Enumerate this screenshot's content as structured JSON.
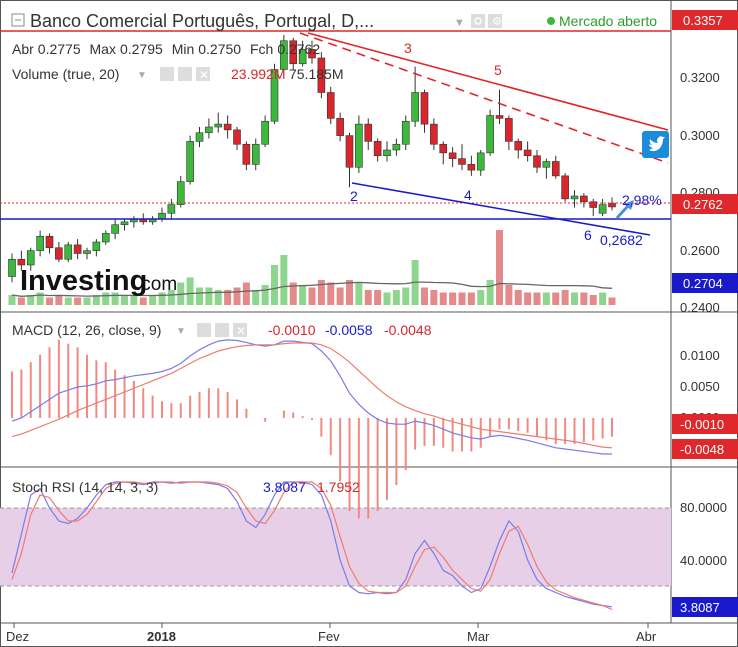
{
  "header": {
    "title": "Banco Comercial Português, Portugal, D,...",
    "market_status": "Mercado aberto",
    "ohlc": {
      "abr_label": "Abr",
      "abr": "0.2775",
      "max_label": "Max",
      "max": "0.2795",
      "min_label": "Min",
      "min": "0.2750",
      "fch_label": "Fch",
      "fch": "0.2762"
    },
    "volume_label": "Volume (true, 20)",
    "volume_v1": "23.992M",
    "volume_v2": "75.185M"
  },
  "logo": {
    "word": "Investing",
    "suffix": ".com"
  },
  "colors": {
    "up": "#3cb83c",
    "down": "#d9262d",
    "blue": "#1a1acc",
    "red": "#e0272b",
    "macd": "#7b7bea",
    "signal": "#f07a6e",
    "rsi_band": "#e8cfe8"
  },
  "icons": [
    "gear-icon",
    "settings-icon",
    "close-icon",
    "eye-icon",
    "twitter-icon",
    "chevron-down-icon"
  ],
  "main_axis": {
    "ticks": [
      "0.3200",
      "0.3000",
      "0.2800",
      "0.2600",
      "0.2400"
    ],
    "badge_top": "0.3357",
    "badge_price": "0.2762",
    "badge_volume": "0.2704"
  },
  "annotations": {
    "p2": "2",
    "p3": "3",
    "p4": "4",
    "p5": "5",
    "p6": "6",
    "target": "0,2682",
    "pct": "2,98%"
  },
  "macd": {
    "label": "MACD (12, 26, close, 9)",
    "v1": "-0.0010",
    "v2": "-0.0058",
    "v3": "-0.0048",
    "ticks": [
      "0.0100",
      "0.0050",
      "0.0000"
    ],
    "badge1": "-0.0010",
    "badge2": "-0.0048"
  },
  "stoch": {
    "label": "Stoch RSI (14, 14, 3, 3)",
    "v1": "3.8087",
    "v2": "1.7952",
    "ticks": [
      "80.0000",
      "40.0000"
    ],
    "badge": "3.8087"
  },
  "x_axis": {
    "labels": [
      "Dez",
      "2018",
      "Fev",
      "Mar",
      "Abr"
    ]
  },
  "chart_data": {
    "type": "candlestick",
    "title": "Banco Comercial Português, Portugal, D",
    "ylim": [
      0.235,
      0.337
    ],
    "candles": [
      [
        0.252,
        0.26,
        0.25,
        0.258
      ],
      [
        0.258,
        0.261,
        0.254,
        0.256
      ],
      [
        0.256,
        0.262,
        0.254,
        0.261
      ],
      [
        0.261,
        0.268,
        0.259,
        0.266
      ],
      [
        0.266,
        0.267,
        0.26,
        0.262
      ],
      [
        0.262,
        0.264,
        0.257,
        0.258
      ],
      [
        0.258,
        0.264,
        0.257,
        0.263
      ],
      [
        0.263,
        0.265,
        0.258,
        0.26
      ],
      [
        0.26,
        0.262,
        0.258,
        0.261
      ],
      [
        0.261,
        0.265,
        0.259,
        0.264
      ],
      [
        0.264,
        0.268,
        0.263,
        0.267
      ],
      [
        0.267,
        0.272,
        0.265,
        0.27
      ],
      [
        0.27,
        0.272,
        0.268,
        0.271
      ],
      [
        0.271,
        0.273,
        0.269,
        0.272
      ],
      [
        0.272,
        0.274,
        0.27,
        0.271
      ],
      [
        0.271,
        0.273,
        0.27,
        0.272
      ],
      [
        0.272,
        0.276,
        0.271,
        0.274
      ],
      [
        0.274,
        0.279,
        0.272,
        0.277
      ],
      [
        0.277,
        0.287,
        0.276,
        0.285
      ],
      [
        0.285,
        0.301,
        0.284,
        0.299
      ],
      [
        0.299,
        0.304,
        0.297,
        0.302
      ],
      [
        0.302,
        0.307,
        0.3,
        0.304
      ],
      [
        0.304,
        0.309,
        0.302,
        0.305
      ],
      [
        0.305,
        0.308,
        0.3,
        0.303
      ],
      [
        0.303,
        0.304,
        0.296,
        0.298
      ],
      [
        0.298,
        0.299,
        0.289,
        0.291
      ],
      [
        0.291,
        0.3,
        0.289,
        0.298
      ],
      [
        0.298,
        0.308,
        0.297,
        0.306
      ],
      [
        0.306,
        0.326,
        0.305,
        0.324
      ],
      [
        0.324,
        0.336,
        0.322,
        0.334
      ],
      [
        0.334,
        0.335,
        0.324,
        0.326
      ],
      [
        0.326,
        0.334,
        0.325,
        0.331
      ],
      [
        0.331,
        0.334,
        0.326,
        0.328
      ],
      [
        0.328,
        0.33,
        0.314,
        0.316
      ],
      [
        0.316,
        0.318,
        0.305,
        0.307
      ],
      [
        0.307,
        0.309,
        0.299,
        0.301
      ],
      [
        0.301,
        0.302,
        0.283,
        0.29
      ],
      [
        0.29,
        0.308,
        0.288,
        0.305
      ],
      [
        0.305,
        0.307,
        0.296,
        0.299
      ],
      [
        0.299,
        0.3,
        0.292,
        0.294
      ],
      [
        0.294,
        0.299,
        0.292,
        0.296
      ],
      [
        0.296,
        0.3,
        0.294,
        0.298
      ],
      [
        0.298,
        0.308,
        0.296,
        0.306
      ],
      [
        0.306,
        0.325,
        0.304,
        0.316
      ],
      [
        0.316,
        0.317,
        0.302,
        0.305
      ],
      [
        0.305,
        0.307,
        0.296,
        0.298
      ],
      [
        0.298,
        0.299,
        0.291,
        0.295
      ],
      [
        0.295,
        0.297,
        0.29,
        0.293
      ],
      [
        0.293,
        0.298,
        0.289,
        0.291
      ],
      [
        0.291,
        0.294,
        0.287,
        0.289
      ],
      [
        0.289,
        0.296,
        0.287,
        0.295
      ],
      [
        0.295,
        0.31,
        0.294,
        0.308
      ],
      [
        0.308,
        0.317,
        0.305,
        0.307
      ],
      [
        0.307,
        0.308,
        0.296,
        0.299
      ],
      [
        0.299,
        0.3,
        0.293,
        0.296
      ],
      [
        0.296,
        0.299,
        0.292,
        0.294
      ],
      [
        0.294,
        0.296,
        0.288,
        0.29
      ],
      [
        0.29,
        0.293,
        0.286,
        0.292
      ],
      [
        0.292,
        0.294,
        0.286,
        0.287
      ],
      [
        0.287,
        0.288,
        0.278,
        0.279
      ],
      [
        0.279,
        0.282,
        0.276,
        0.28
      ],
      [
        0.28,
        0.281,
        0.276,
        0.278
      ],
      [
        0.278,
        0.279,
        0.273,
        0.276
      ],
      [
        0.274,
        0.279,
        0.273,
        0.277
      ],
      [
        0.2775,
        0.2795,
        0.275,
        0.2762
      ]
    ],
    "volume": [
      4,
      3,
      4,
      5,
      3,
      4,
      3,
      3,
      3,
      4,
      5,
      5,
      4,
      4,
      3,
      4,
      5,
      6,
      9,
      11,
      7,
      7,
      6,
      6,
      7,
      9,
      6,
      8,
      16,
      20,
      9,
      8,
      7,
      10,
      9,
      7,
      10,
      9,
      6,
      6,
      5,
      6,
      7,
      18,
      7,
      6,
      5,
      5,
      5,
      5,
      6,
      10,
      30,
      8,
      6,
      5,
      5,
      5,
      5,
      6,
      5,
      5,
      4,
      5,
      3
    ],
    "macd": [
      -0.0005,
      0.0,
      0.001,
      0.002,
      0.003,
      0.004,
      0.0045,
      0.005,
      0.0052,
      0.0055,
      0.006,
      0.0062,
      0.0065,
      0.0068,
      0.007,
      0.0072,
      0.0075,
      0.008,
      0.0088,
      0.01,
      0.011,
      0.0118,
      0.0124,
      0.0126,
      0.0125,
      0.0122,
      0.0118,
      0.0116,
      0.0118,
      0.0124,
      0.0124,
      0.0122,
      0.012,
      0.0108,
      0.0092,
      0.0068,
      0.004,
      0.0022,
      0.0008,
      -0.0002,
      -0.0008,
      -0.001,
      -0.001,
      -0.0005,
      -0.0008,
      -0.0012,
      -0.0018,
      -0.0024,
      -0.0028,
      -0.0032,
      -0.0034,
      -0.003,
      -0.0028,
      -0.003,
      -0.0033,
      -0.0036,
      -0.004,
      -0.0044,
      -0.0048,
      -0.005,
      -0.0052,
      -0.0054,
      -0.0056,
      -0.0058,
      -0.0058
    ],
    "signal": [
      -0.003,
      -0.0026,
      -0.002,
      -0.0014,
      -0.0008,
      -0.0002,
      0.0005,
      0.0012,
      0.0018,
      0.0024,
      0.003,
      0.0036,
      0.0042,
      0.0048,
      0.0054,
      0.006,
      0.0066,
      0.0072,
      0.008,
      0.0088,
      0.0096,
      0.0102,
      0.0108,
      0.0112,
      0.0115,
      0.0117,
      0.0118,
      0.0118,
      0.0118,
      0.012,
      0.0121,
      0.0121,
      0.0121,
      0.0118,
      0.0112,
      0.0102,
      0.009,
      0.0076,
      0.0062,
      0.0048,
      0.0036,
      0.0026,
      0.0018,
      0.0012,
      0.0007,
      0.0003,
      -0.0002,
      -0.0006,
      -0.001,
      -0.0014,
      -0.0018,
      -0.002,
      -0.0022,
      -0.0024,
      -0.0026,
      -0.0028,
      -0.003,
      -0.0032,
      -0.0034,
      -0.0036,
      -0.0038,
      -0.0041,
      -0.0044,
      -0.0047,
      -0.0048
    ],
    "stoch_k": [
      30,
      60,
      90,
      95,
      80,
      70,
      68,
      72,
      80,
      90,
      98,
      100,
      100,
      99,
      98,
      100,
      100,
      99,
      100,
      100,
      100,
      99,
      98,
      95,
      85,
      70,
      65,
      75,
      90,
      100,
      100,
      100,
      98,
      90,
      70,
      40,
      20,
      15,
      14,
      15,
      14,
      15,
      25,
      45,
      55,
      45,
      32,
      28,
      20,
      15,
      18,
      35,
      55,
      70,
      62,
      40,
      25,
      18,
      15,
      12,
      10,
      8,
      6,
      5,
      4
    ],
    "stoch_d": [
      25,
      45,
      75,
      90,
      88,
      78,
      70,
      70,
      75,
      85,
      95,
      99,
      100,
      100,
      99,
      99,
      100,
      100,
      99,
      100,
      100,
      100,
      99,
      97,
      92,
      80,
      70,
      68,
      78,
      92,
      100,
      100,
      100,
      95,
      82,
      58,
      35,
      22,
      16,
      15,
      15,
      15,
      20,
      35,
      48,
      50,
      42,
      32,
      25,
      18,
      16,
      25,
      45,
      62,
      66,
      52,
      35,
      23,
      17,
      14,
      11,
      9,
      7,
      5,
      2
    ]
  }
}
